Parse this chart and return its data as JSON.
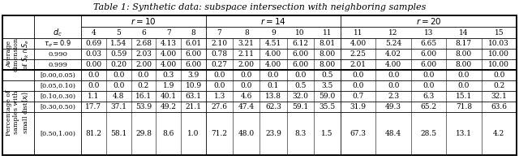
{
  "title": "Table 1: Synthetic data: subspace intersection with neighboring samples",
  "dc_values_r10": [
    "4",
    "5",
    "6",
    "7",
    "8"
  ],
  "dc_values_r14": [
    "7",
    "8",
    "9",
    "10",
    "11"
  ],
  "dc_values_r20": [
    "11",
    "12",
    "13",
    "14",
    "15"
  ],
  "avg_dim_r10": [
    [
      "0.69",
      "1.54",
      "2.68",
      "4.13",
      "6.01"
    ],
    [
      "0.03",
      "0.59",
      "2.03",
      "4.00",
      "6.00"
    ],
    [
      "0.00",
      "0.20",
      "2.00",
      "4.00",
      "6.00"
    ]
  ],
  "avg_dim_r14": [
    [
      "2.10",
      "3.21",
      "4.51",
      "6.12",
      "8.01"
    ],
    [
      "0.78",
      "2.11",
      "4.00",
      "6.00",
      "8.00"
    ],
    [
      "0.27",
      "2.00",
      "4.00",
      "6.00",
      "8.00"
    ]
  ],
  "avg_dim_r20": [
    [
      "4.00",
      "5.24",
      "6.65",
      "8.17",
      "10.03"
    ],
    [
      "2.25",
      "4.02",
      "6.00",
      "8.00",
      "10.00"
    ],
    [
      "2.01",
      "4.00",
      "6.00",
      "8.00",
      "10.00"
    ]
  ],
  "pct_row_labels": [
    "[0.00,0.05)",
    "[0.05,0.10)",
    "[0.10,0.30)",
    "[0.30,0.50)",
    "[0.50,1.00)"
  ],
  "pct_r10": [
    [
      "0.0",
      "0.0",
      "0.0",
      "0.3",
      "3.9"
    ],
    [
      "0.0",
      "0.0",
      "0.2",
      "1.9",
      "10.9"
    ],
    [
      "1.1",
      "4.8",
      "16.1",
      "40.1",
      "63.1"
    ],
    [
      "17.7",
      "37.1",
      "53.9",
      "49.2",
      "21.1"
    ],
    [
      "81.2",
      "58.1",
      "29.8",
      "8.6",
      "1.0"
    ]
  ],
  "pct_r14": [
    [
      "0.0",
      "0.0",
      "0.0",
      "0.0",
      "0.5"
    ],
    [
      "0.0",
      "0.0",
      "0.1",
      "0.5",
      "3.5"
    ],
    [
      "1.3",
      "4.6",
      "13.8",
      "32.0",
      "59.0"
    ],
    [
      "27.6",
      "47.4",
      "62.3",
      "59.1",
      "35.5"
    ],
    [
      "71.2",
      "48.0",
      "23.9",
      "8.3",
      "1.5"
    ]
  ],
  "pct_r20": [
    [
      "0.0",
      "0.0",
      "0.0",
      "0.0",
      "0.0"
    ],
    [
      "0.0",
      "0.0",
      "0.0",
      "0.0",
      "0.2"
    ],
    [
      "0.7",
      "2.3",
      "6.3",
      "15.1",
      "32.1"
    ],
    [
      "31.9",
      "49.3",
      "65.2",
      "71.8",
      "63.6"
    ],
    [
      "67.3",
      "48.4",
      "28.5",
      "13.1",
      "4.2"
    ]
  ]
}
